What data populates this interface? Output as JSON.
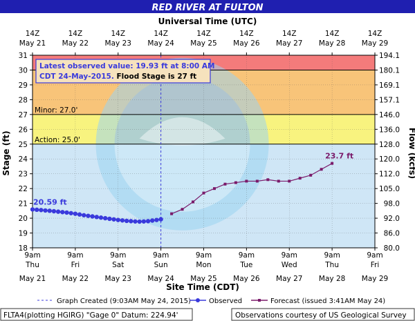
{
  "chart_data": {
    "type": "line",
    "title": "RED RIVER AT FULTON",
    "top_axis_title": "Universal Time (UTC)",
    "bottom_axis_title": "Site Time (CDT)",
    "ylabel_left": "Stage (ft)",
    "ylabel_right": "Flow (kcfs)",
    "ylim": [
      18,
      31
    ],
    "y_ticks": [
      18,
      19,
      20,
      21,
      22,
      23,
      24,
      25,
      26,
      27,
      28,
      29,
      30,
      31
    ],
    "right_ticks": [
      "80.0",
      "86.0",
      "92.0",
      "98.0",
      "105.0",
      "112.0",
      "120.0",
      "128.0",
      "136.0",
      "146.0",
      "157.1",
      "169.1",
      "180.1",
      "194.1"
    ],
    "x_range_days": [
      0,
      8
    ],
    "top_ticks": [
      {
        "time": "14Z",
        "date": "May 21"
      },
      {
        "time": "14Z",
        "date": "May 22"
      },
      {
        "time": "14Z",
        "date": "May 23"
      },
      {
        "time": "14Z",
        "date": "May 24"
      },
      {
        "time": "14Z",
        "date": "May 25"
      },
      {
        "time": "14Z",
        "date": "May 26"
      },
      {
        "time": "14Z",
        "date": "May 27"
      },
      {
        "time": "14Z",
        "date": "May 28"
      },
      {
        "time": "14Z",
        "date": "May 29"
      }
    ],
    "bottom_ticks": [
      {
        "time": "9am",
        "day": "Thu",
        "date": "May 21"
      },
      {
        "time": "9am",
        "day": "Fri",
        "date": "May 22"
      },
      {
        "time": "9am",
        "day": "Sat",
        "date": "May 23"
      },
      {
        "time": "9am",
        "day": "Sun",
        "date": "May 24"
      },
      {
        "time": "9am",
        "day": "Mon",
        "date": "May 25"
      },
      {
        "time": "9am",
        "day": "Tue",
        "date": "May 26"
      },
      {
        "time": "9am",
        "day": "Wed",
        "date": "May 27"
      },
      {
        "time": "9am",
        "day": "Thu",
        "date": "May 28"
      },
      {
        "time": "9am",
        "day": "Fri",
        "date": "May 29"
      }
    ],
    "bands": [
      {
        "from": 30,
        "to": 31,
        "color": "#f47b7b"
      },
      {
        "from": 27,
        "to": 30,
        "color": "#f8c479"
      },
      {
        "from": 25,
        "to": 27,
        "color": "#f8f37f"
      }
    ],
    "thresholds": [
      {
        "label": "Minor: 27.0'",
        "value": 27
      },
      {
        "label": "Action: 25.0'",
        "value": 25
      },
      {
        "label": "",
        "value": 30
      }
    ],
    "created_marker_day": 3.0,
    "annotation": {
      "line1": "Latest observed value: 19.93 ft at 8:00 AM",
      "line2_blue": "CDT 24-May-2015.",
      "line2_black": " Flood Stage is 27 ft"
    },
    "first_label": "20.59 ft",
    "last_label": "23.7 ft",
    "series": [
      {
        "name": "Observed",
        "color": "#3a3adc",
        "x": [
          0.0,
          0.1,
          0.2,
          0.3,
          0.4,
          0.5,
          0.6,
          0.7,
          0.8,
          0.9,
          1.0,
          1.1,
          1.2,
          1.3,
          1.4,
          1.5,
          1.6,
          1.7,
          1.8,
          1.9,
          2.0,
          2.1,
          2.2,
          2.3,
          2.4,
          2.5,
          2.6,
          2.7,
          2.8,
          2.9,
          3.0
        ],
        "values": [
          20.59,
          20.57,
          20.55,
          20.52,
          20.5,
          20.47,
          20.44,
          20.41,
          20.38,
          20.34,
          20.3,
          20.25,
          20.2,
          20.16,
          20.12,
          20.08,
          20.04,
          20.0,
          19.96,
          19.92,
          19.88,
          19.85,
          19.82,
          19.8,
          19.78,
          19.77,
          19.78,
          19.8,
          19.84,
          19.88,
          19.93
        ]
      },
      {
        "name": "Forecast (issued 3:41AM May 24)",
        "color": "#7a1a6a",
        "x": [
          3.25,
          3.5,
          3.75,
          4.0,
          4.25,
          4.5,
          4.75,
          5.0,
          5.25,
          5.5,
          5.75,
          6.0,
          6.25,
          6.5,
          6.75,
          7.0
        ],
        "values": [
          20.3,
          20.6,
          21.1,
          21.7,
          22.0,
          22.3,
          22.4,
          22.5,
          22.5,
          22.6,
          22.5,
          22.5,
          22.7,
          22.9,
          23.3,
          23.7
        ]
      }
    ],
    "legend": {
      "created": "Graph Created (9:03AM May 24, 2015)",
      "observed": "Observed",
      "forecast": "Forecast (issued 3:41AM May 24)"
    },
    "footer_left": "FLTA4(plotting HGIRG) \"Gage 0\" Datum: 224.94'",
    "footer_right": "Observations courtesy of US Geological Survey",
    "watermark": "NATIONAL OCEANIC AND ATMOSPHERIC ADMINISTRATION  U.S. DEPARTMENT OF COMMERCE  NOAA"
  }
}
